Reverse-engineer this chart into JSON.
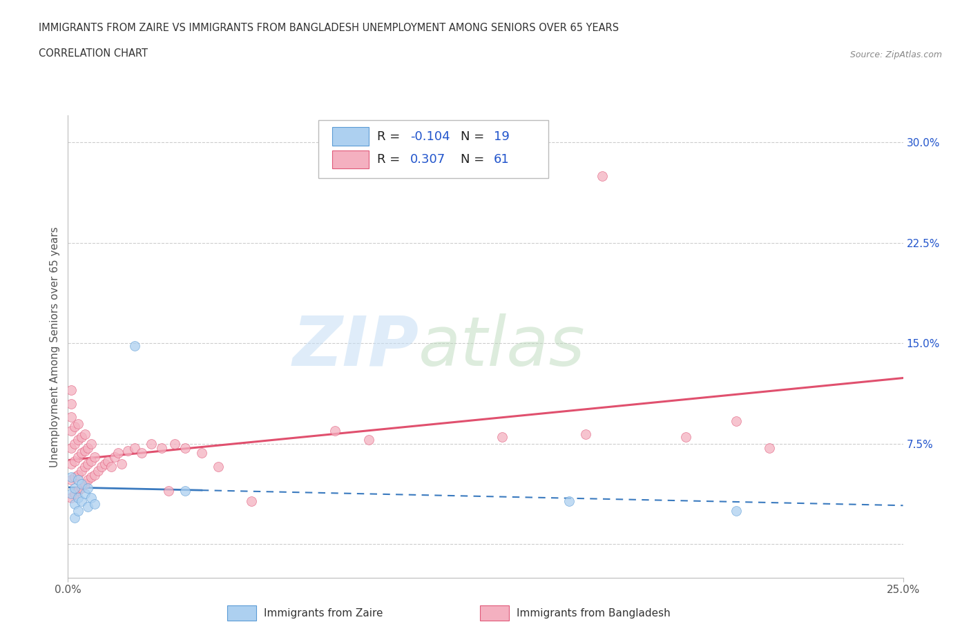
{
  "title_line1": "IMMIGRANTS FROM ZAIRE VS IMMIGRANTS FROM BANGLADESH UNEMPLOYMENT AMONG SENIORS OVER 65 YEARS",
  "title_line2": "CORRELATION CHART",
  "source": "Source: ZipAtlas.com",
  "ylabel": "Unemployment Among Seniors over 65 years",
  "legend_label1": "Immigrants from Zaire",
  "legend_label2": "Immigrants from Bangladesh",
  "r_zaire": -0.104,
  "n_zaire": 19,
  "r_bangladesh": 0.307,
  "n_bangladesh": 61,
  "zaire_color": "#add0f0",
  "zaire_edge_color": "#5b9bd5",
  "bangladesh_color": "#f4b0c0",
  "bangladesh_edge_color": "#e05878",
  "zaire_line_color": "#3a7abf",
  "bangladesh_line_color": "#e0506e",
  "scatter_size": 100,
  "scatter_alpha": 0.75,
  "xlim": [
    0.0,
    0.25
  ],
  "ylim": [
    -0.025,
    0.32
  ],
  "ytick_positions": [
    0.0,
    0.075,
    0.15,
    0.225,
    0.3
  ],
  "ytick_labels": [
    "",
    "7.5%",
    "15.0%",
    "22.5%",
    "30.0%"
  ],
  "grid_color": "#cccccc",
  "background_color": "#ffffff",
  "text_color": "#333333",
  "blue_color": "#2255cc",
  "zaire_points": [
    [
      0.001,
      0.05
    ],
    [
      0.001,
      0.038
    ],
    [
      0.002,
      0.042
    ],
    [
      0.002,
      0.03
    ],
    [
      0.002,
      0.02
    ],
    [
      0.003,
      0.048
    ],
    [
      0.003,
      0.035
    ],
    [
      0.003,
      0.025
    ],
    [
      0.004,
      0.045
    ],
    [
      0.004,
      0.032
    ],
    [
      0.005,
      0.038
    ],
    [
      0.006,
      0.042
    ],
    [
      0.006,
      0.028
    ],
    [
      0.007,
      0.035
    ],
    [
      0.008,
      0.03
    ],
    [
      0.02,
      0.148
    ],
    [
      0.035,
      0.04
    ],
    [
      0.15,
      0.032
    ],
    [
      0.2,
      0.025
    ]
  ],
  "bangladesh_points": [
    [
      0.001,
      0.035
    ],
    [
      0.001,
      0.048
    ],
    [
      0.001,
      0.06
    ],
    [
      0.001,
      0.072
    ],
    [
      0.001,
      0.085
    ],
    [
      0.001,
      0.095
    ],
    [
      0.001,
      0.105
    ],
    [
      0.001,
      0.115
    ],
    [
      0.002,
      0.038
    ],
    [
      0.002,
      0.05
    ],
    [
      0.002,
      0.062
    ],
    [
      0.002,
      0.075
    ],
    [
      0.002,
      0.088
    ],
    [
      0.003,
      0.04
    ],
    [
      0.003,
      0.052
    ],
    [
      0.003,
      0.065
    ],
    [
      0.003,
      0.078
    ],
    [
      0.003,
      0.09
    ],
    [
      0.004,
      0.042
    ],
    [
      0.004,
      0.055
    ],
    [
      0.004,
      0.068
    ],
    [
      0.004,
      0.08
    ],
    [
      0.005,
      0.045
    ],
    [
      0.005,
      0.058
    ],
    [
      0.005,
      0.07
    ],
    [
      0.005,
      0.082
    ],
    [
      0.006,
      0.048
    ],
    [
      0.006,
      0.06
    ],
    [
      0.006,
      0.072
    ],
    [
      0.007,
      0.05
    ],
    [
      0.007,
      0.062
    ],
    [
      0.007,
      0.075
    ],
    [
      0.008,
      0.052
    ],
    [
      0.008,
      0.065
    ],
    [
      0.009,
      0.055
    ],
    [
      0.01,
      0.058
    ],
    [
      0.011,
      0.06
    ],
    [
      0.012,
      0.062
    ],
    [
      0.013,
      0.058
    ],
    [
      0.014,
      0.065
    ],
    [
      0.015,
      0.068
    ],
    [
      0.016,
      0.06
    ],
    [
      0.018,
      0.07
    ],
    [
      0.02,
      0.072
    ],
    [
      0.022,
      0.068
    ],
    [
      0.025,
      0.075
    ],
    [
      0.028,
      0.072
    ],
    [
      0.03,
      0.04
    ],
    [
      0.032,
      0.075
    ],
    [
      0.035,
      0.072
    ],
    [
      0.04,
      0.068
    ],
    [
      0.045,
      0.058
    ],
    [
      0.055,
      0.032
    ],
    [
      0.08,
      0.085
    ],
    [
      0.09,
      0.078
    ],
    [
      0.13,
      0.08
    ],
    [
      0.155,
      0.082
    ],
    [
      0.16,
      0.275
    ],
    [
      0.185,
      0.08
    ],
    [
      0.2,
      0.092
    ],
    [
      0.21,
      0.072
    ]
  ]
}
